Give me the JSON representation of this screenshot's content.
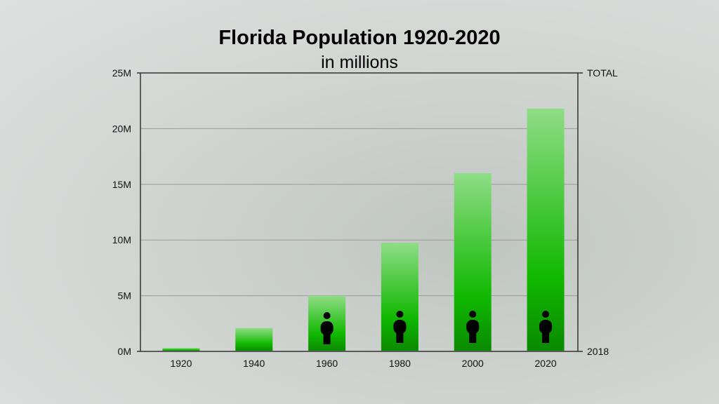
{
  "chart_data": {
    "type": "bar",
    "title": "Florida Population 1920-2020",
    "subtitle": "in millions",
    "categories": [
      "1920",
      "1940",
      "1960",
      "1980",
      "2000",
      "2020"
    ],
    "values": [
      0.3,
      2.1,
      5.0,
      9.75,
      16.0,
      21.8
    ],
    "unit": "millions",
    "ylim": [
      0,
      25
    ],
    "yticks": [
      0,
      5,
      10,
      15,
      20,
      25
    ],
    "ytick_labels": [
      "0M",
      "5M",
      "10M",
      "15M",
      "20M",
      "25M"
    ],
    "right_axis_labels": {
      "top": "TOTAL",
      "bottom": "2018"
    },
    "grid": true,
    "bar_icon": "person-icon",
    "bar_icon_categories": [
      "1960",
      "1980",
      "2000",
      "2020"
    ],
    "colors": {
      "bar_top": "#8fdd86",
      "bar_mid": "#10b800",
      "bar_bottom": "#0a8a00",
      "icon": "#000000"
    }
  }
}
